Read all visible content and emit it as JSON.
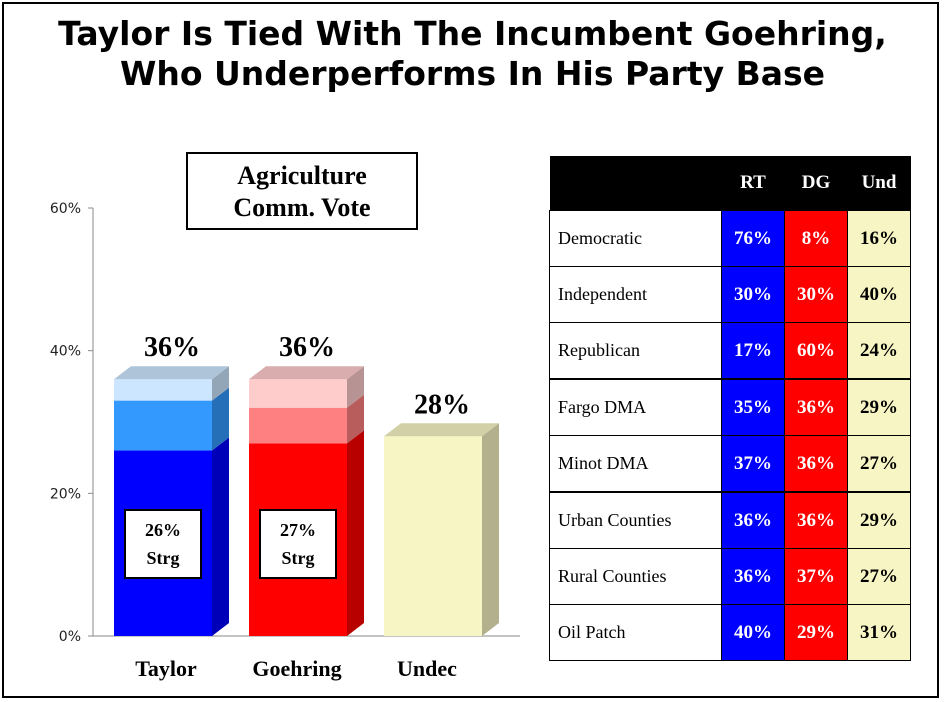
{
  "title": {
    "line1": "Taylor Is Tied With The Incumbent Goehring,",
    "line2": "Who Underperforms In His Party Base"
  },
  "chart_title": {
    "line1": "Agriculture",
    "line2": "Comm. Vote"
  },
  "colors": {
    "taylor": [
      "#0000ff",
      "#3399ff",
      "#cce6ff"
    ],
    "goehring": [
      "#ff0000",
      "#ff8080",
      "#ffcccc"
    ],
    "undec": "#f7f5c4",
    "rt": "#0000ff",
    "dg": "#ff0000",
    "und": "#f7f5c4"
  },
  "chart_data": [
    {
      "type": "bar",
      "title": "Agriculture Comm. Vote",
      "categories": [
        "Taylor",
        "Goehring",
        "Undec"
      ],
      "values": [
        36,
        36,
        28
      ],
      "value_labels": [
        "36%",
        "36%",
        "28%"
      ],
      "strong": [
        26,
        27,
        null
      ],
      "strong_labels": [
        [
          "26%",
          "Strg"
        ],
        [
          "27%",
          "Strg"
        ],
        null
      ],
      "ylim": [
        0,
        60
      ],
      "yticks": [
        0,
        20,
        40,
        60
      ],
      "ytick_labels": [
        "0%",
        "20%",
        "40%",
        "60%"
      ],
      "grid": false,
      "stacked_segments": {
        "Taylor": [
          26,
          7,
          3
        ],
        "Goehring": [
          27,
          5,
          4
        ]
      }
    },
    {
      "type": "table",
      "columns": [
        "RT",
        "DG",
        "Und"
      ],
      "rows": [
        {
          "label": "Democratic",
          "values": [
            "76%",
            "8%",
            "16%"
          ]
        },
        {
          "label": "Independent",
          "values": [
            "30%",
            "30%",
            "40%"
          ]
        },
        {
          "label": "Republican",
          "values": [
            "17%",
            "60%",
            "24%"
          ]
        },
        {
          "label": "Fargo DMA",
          "values": [
            "35%",
            "36%",
            "29%"
          ]
        },
        {
          "label": "Minot DMA",
          "values": [
            "37%",
            "36%",
            "27%"
          ]
        },
        {
          "label": "Urban Counties",
          "values": [
            "36%",
            "36%",
            "29%"
          ]
        },
        {
          "label": "Rural Counties",
          "values": [
            "36%",
            "37%",
            "27%"
          ]
        },
        {
          "label": "Oil Patch",
          "values": [
            "40%",
            "29%",
            "31%"
          ]
        }
      ]
    }
  ]
}
